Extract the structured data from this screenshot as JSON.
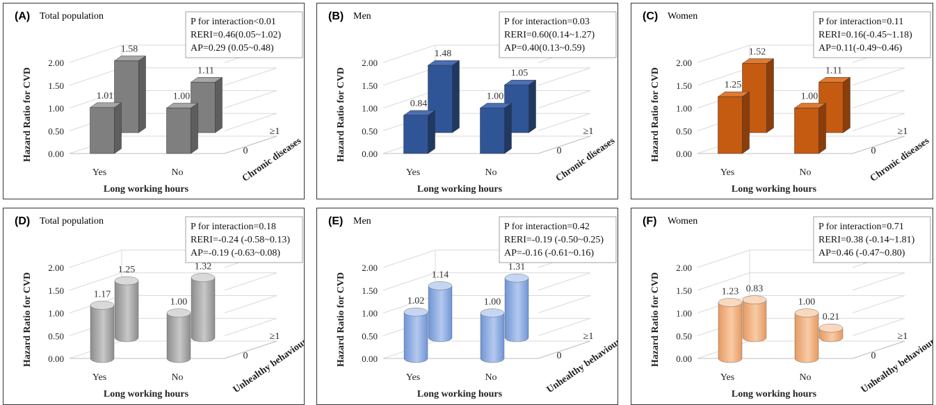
{
  "chart_data": [
    {
      "type": "bar",
      "panel_letter": "(A)",
      "title": "Total population",
      "stats": [
        "P for interaction<0.01",
        "RERI=0.46(0.05~1.02)",
        "AP=0.29 (0.05~0.48)"
      ],
      "ylabel": "Hazard Ratio for CVD",
      "xlabel": "Long working hours",
      "zlabel": "Chronic diseases",
      "categories": [
        "Yes",
        "No"
      ],
      "depth_categories": [
        "0",
        "≥1"
      ],
      "yticks": [
        "0.00",
        "0.50",
        "1.00",
        "1.50",
        "2.00"
      ],
      "ylim": [
        0,
        2
      ],
      "series": [
        {
          "values": [
            1.01,
            1.0
          ]
        },
        {
          "values": [
            1.58,
            1.11
          ]
        }
      ],
      "data_labels": [
        [
          "1.01",
          "1.00"
        ],
        [
          "1.58",
          "1.11"
        ]
      ],
      "shape": "box",
      "colors": {
        "front": "#7f7f7f",
        "side": "#5e5e5e",
        "top": "#a6a6a6"
      }
    },
    {
      "type": "bar",
      "panel_letter": "(B)",
      "title": "Men",
      "stats": [
        "P for interaction=0.03",
        "RERI=0.60(0.14~1.27)",
        "AP=0.40(0.13~0.59)"
      ],
      "ylabel": "Hazard Ratio for CVD",
      "xlabel": "Long working hours",
      "zlabel": "Chronic diseases",
      "categories": [
        "Yes",
        "No"
      ],
      "depth_categories": [
        "0",
        "≥1"
      ],
      "yticks": [
        "0.00",
        "0.50",
        "1.00",
        "1.50",
        "2.00"
      ],
      "ylim": [
        0,
        2
      ],
      "series": [
        {
          "values": [
            0.84,
            1.0
          ]
        },
        {
          "values": [
            1.48,
            1.05
          ]
        }
      ],
      "data_labels": [
        [
          "0.84",
          "1.00"
        ],
        [
          "1.48",
          "1.05"
        ]
      ],
      "shape": "box",
      "colors": {
        "front": "#2f5597",
        "side": "#1f3864",
        "top": "#4a6fb5"
      }
    },
    {
      "type": "bar",
      "panel_letter": "(C)",
      "title": "Women",
      "stats": [
        "P for interaction=0.11",
        "RERI=0.16(-0.45~1.18)",
        "AP=0.11(-0.49~0.46)"
      ],
      "ylabel": "Hazard Ratio for CVD",
      "xlabel": "Long working hours",
      "zlabel": "Chronic diseases",
      "categories": [
        "Yes",
        "No"
      ],
      "depth_categories": [
        "0",
        "≥1"
      ],
      "yticks": [
        "0.00",
        "0.50",
        "1.00",
        "1.50",
        "2.00"
      ],
      "ylim": [
        0,
        2
      ],
      "series": [
        {
          "values": [
            1.25,
            1.0
          ]
        },
        {
          "values": [
            1.52,
            1.11
          ]
        }
      ],
      "data_labels": [
        [
          "1.25",
          "1.00"
        ],
        [
          "1.52",
          "1.11"
        ]
      ],
      "shape": "box",
      "colors": {
        "front": "#c55a11",
        "side": "#8b3d0a",
        "top": "#e07a30"
      }
    },
    {
      "type": "bar",
      "panel_letter": "(D)",
      "title": "Total population",
      "stats": [
        "P for interaction=0.18",
        "RERI=-0.24 (-0.58~0.13)",
        "AP=-0.19 (-0.63~0.08)"
      ],
      "ylabel": "Hazard Ratio for CVD",
      "xlabel": "Long working hours",
      "zlabel": "Unhealthy behaviours",
      "categories": [
        "Yes",
        "No"
      ],
      "depth_categories": [
        "0",
        "≥1"
      ],
      "yticks": [
        "0.00",
        "0.50",
        "1.00",
        "1.50",
        "2.00"
      ],
      "ylim": [
        0,
        2
      ],
      "series": [
        {
          "values": [
            1.17,
            1.0
          ]
        },
        {
          "values": [
            1.25,
            1.32
          ]
        }
      ],
      "data_labels": [
        [
          "1.17",
          "1.00"
        ],
        [
          "1.25",
          "1.32"
        ]
      ],
      "shape": "cylinder",
      "colors": {
        "dark": "#8c8c8c",
        "light": "#c8c8c8",
        "top": "#d9d9d9"
      }
    },
    {
      "type": "bar",
      "panel_letter": "(E)",
      "title": "Men",
      "stats": [
        "P for interaction=0.42",
        "RERI=-0.19 (-0.50~0.25)",
        "AP=-0.16 (-0.61~0.16)"
      ],
      "ylabel": "Hazard Ratio for CVD",
      "xlabel": "Long working hours",
      "zlabel": "Unhealthy behaviours",
      "categories": [
        "Yes",
        "No"
      ],
      "depth_categories": [
        "0",
        "≥1"
      ],
      "yticks": [
        "0.00",
        "0.50",
        "1.00",
        "1.50",
        "2.00"
      ],
      "ylim": [
        0,
        2
      ],
      "series": [
        {
          "values": [
            1.02,
            1.0
          ]
        },
        {
          "values": [
            1.14,
            1.31
          ]
        }
      ],
      "data_labels": [
        [
          "1.02",
          "1.00"
        ],
        [
          "1.14",
          "1.31"
        ]
      ],
      "shape": "cylinder",
      "colors": {
        "dark": "#6f95d6",
        "light": "#b4c9ee",
        "top": "#c5d6f2"
      }
    },
    {
      "type": "bar",
      "panel_letter": "(F)",
      "title": "Women",
      "stats": [
        "P for interaction=0.71",
        "RERI=0.38 (-0.14~1.81)",
        "AP=0.46 (-0.47~0.80)"
      ],
      "ylabel": "Hazard Ratio for CVD",
      "xlabel": "Long working hours",
      "zlabel": "Unhealthy behaviours",
      "categories": [
        "Yes",
        "No"
      ],
      "depth_categories": [
        "0",
        "≥1"
      ],
      "yticks": [
        "0.00",
        "0.50",
        "1.00",
        "1.50",
        "2.00"
      ],
      "ylim": [
        0,
        2
      ],
      "series": [
        {
          "values": [
            1.23,
            1.0
          ]
        },
        {
          "values": [
            0.83,
            0.21
          ]
        }
      ],
      "data_labels": [
        [
          "1.23",
          "1.00"
        ],
        [
          "0.83",
          "0.21"
        ]
      ],
      "shape": "cylinder",
      "colors": {
        "dark": "#e59a62",
        "light": "#f8cba6",
        "top": "#fad8bd"
      }
    }
  ]
}
